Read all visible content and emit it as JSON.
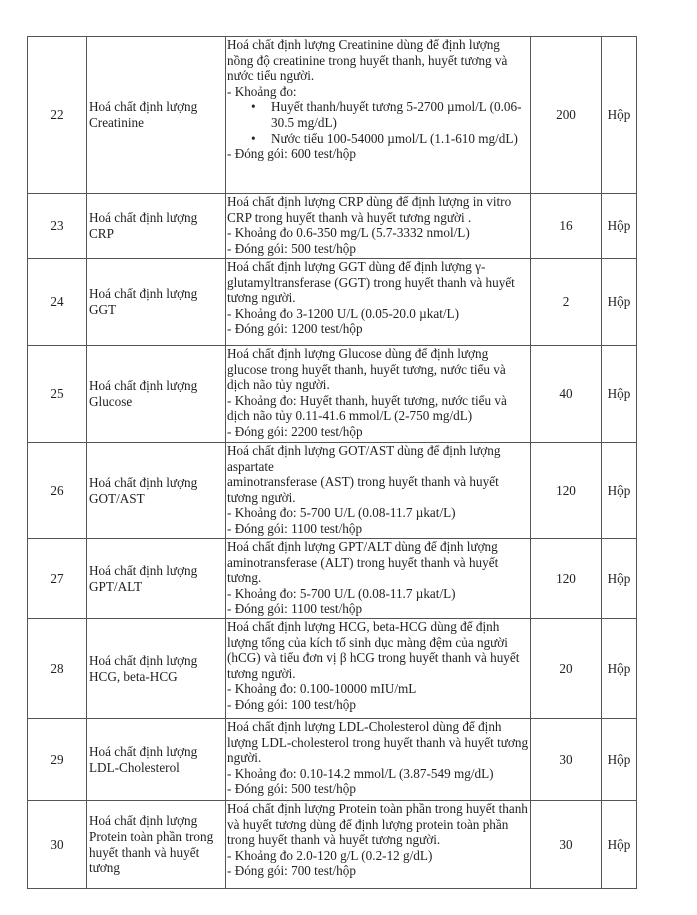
{
  "rows": [
    {
      "no": "22",
      "name": "Hoá chất định lượng Creatinine",
      "desc": [
        "Hoá chất định lượng Creatinine dùng để định lượng nồng độ creatinine trong huyết thanh, huyết tương và nước tiểu người.",
        "- Khoảng đo:"
      ],
      "bullets": [
        "Huyết thanh/huyết tương 5-2700 µmol/L (0.06-30.5 mg/dL)",
        "Nước tiểu 100-54000 µmol/L (1.1-610 mg/dL)"
      ],
      "pack": "- Đóng gói: 600 test/hộp",
      "qty": "200",
      "unit": "Hộp"
    },
    {
      "no": "23",
      "name": "Hoá chất định lượng CRP",
      "desc": [
        "Hoá chất định lượng CRP dùng để định lượng in vitro CRP trong huyết thanh và huyết tương người .",
        "- Khoảng đo 0.6-350 mg/L (5.7-3332 nmol/L)"
      ],
      "pack": "- Đóng gói: 500 test/hộp",
      "qty": "16",
      "unit": "Hộp"
    },
    {
      "no": "24",
      "name": "Hoá chất định lượng GGT",
      "desc": [
        "Hoá chất định lượng GGT dùng để định lượng γ-glutamyltransferase (GGT) trong huyết thanh và huyết tương người.",
        "- Khoảng đo 3-1200 U/L (0.05-20.0 µkat/L)"
      ],
      "pack": "- Đóng gói: 1200 test/hộp",
      "qty": "2",
      "unit": "Hộp"
    },
    {
      "no": "25",
      "name": "Hoá chất định lượng Glucose",
      "desc": [
        "Hoá chất định lượng Glucose dùng để định lượng glucose trong huyết thanh, huyết tương, nước tiểu và dịch não tủy người.",
        "- Khoảng đo: Huyết thanh, huyết tương, nước tiểu và dịch não tủy 0.11-41.6 mmol/L (2-750 mg/dL)"
      ],
      "pack": "- Đóng gói: 2200 test/hộp",
      "qty": "40",
      "unit": "Hộp"
    },
    {
      "no": "26",
      "name": "Hoá chất định lượng GOT/AST",
      "desc": [
        "Hoá chất định lượng GOT/AST dùng để định lượng aspartate",
        "aminotransferase (AST) trong huyết thanh và huyết tương người.",
        "- Khoảng đo: 5-700 U/L (0.08-11.7 µkat/L)"
      ],
      "pack": "- Đóng gói: 1100 test/hộp",
      "qty": "120",
      "unit": "Hộp"
    },
    {
      "no": "27",
      "name": "Hoá chất định lượng GPT/ALT",
      "desc": [
        "Hoá chất định lượng GPT/ALT dùng để định lượng aminotransferase (ALT) trong huyết thanh và huyết tương.",
        "- Khoảng đo: 5-700 U/L (0.08-11.7 µkat/L)"
      ],
      "pack": "- Đóng gói: 1100 test/hộp",
      "qty": "120",
      "unit": "Hộp"
    },
    {
      "no": "28",
      "name": "Hoá chất định lượng HCG, beta-HCG",
      "desc": [
        "Hoá chất định lượng HCG, beta-HCG dùng để định lượng tổng của kích tố sinh dục màng đệm của người (hCG) và tiểu đơn vị β hCG trong huyết thanh và huyết tương người.",
        "- Khoảng đo: 0.100-10000 mIU/mL"
      ],
      "pack": "- Đóng gói: 100 test/hộp",
      "qty": "20",
      "unit": "Hộp"
    },
    {
      "no": "29",
      "name": "Hoá chất định lượng LDL-Cholesterol",
      "desc": [
        "Hoá chất định lượng LDL-Cholesterol dùng để định lượng LDL-cholesterol trong huyết thanh và huyết tương người.",
        "- Khoảng đo: 0.10-14.2 mmol/L (3.87-549 mg/dL)"
      ],
      "pack": "- Đóng gói: 500 test/hộp",
      "qty": "30",
      "unit": "Hộp"
    },
    {
      "no": "30",
      "name": "Hoá chất định lượng Protein toàn phần trong huyết thanh và huyết tương",
      "desc": [
        "Hoá chất định lượng Protein toàn phần trong huyết thanh và huyết tương dùng để định lượng protein toàn phần trong huyết thanh và huyết tương người.",
        "- Khoảng đo 2.0-120 g/L (0.2-12 g/dL)"
      ],
      "pack": "- Đóng gói: 700 test/hộp",
      "qty": "30",
      "unit": "Hộp"
    }
  ]
}
